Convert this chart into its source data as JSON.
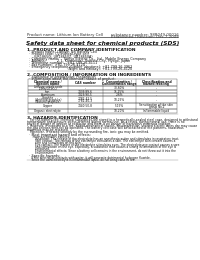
{
  "bg_color": "#ffffff",
  "header_left": "Product name: Lithium Ion Battery Cell",
  "header_right_line1": "substance number: 98R049-00016",
  "header_right_line2": "Established / Revision: Dec.7.2009",
  "title": "Safety data sheet for chemical products (SDS)",
  "section1_title": "1. PRODUCT AND COMPANY IDENTIFICATION",
  "section1_lines": [
    "  · Product name: Lithium Ion Battery Cell",
    "  · Product code: Cylindrical-type cell",
    "      (UR18650J, UR18650Z, UR18650A)",
    "  · Company name:    Sanyo Electric Co., Ltd., Mobile Energy Company",
    "  · Address:          2-1, Kannondai, Sumoto-City, Hyogo, Japan",
    "  · Telephone number:   +81-799-26-4111",
    "  · Fax number:  +81-799-26-4120",
    "  · Emergency telephone number (daytime): +81-799-26-3962",
    "                                    (Night and holiday): +81-799-26-4120"
  ],
  "section2_title": "2. COMPOSITION / INFORMATION ON INGREDIENTS",
  "section2_intro": "  · Substance or preparation: Preparation",
  "section2_sub": "  · Information about the chemical nature of product:",
  "table_headers": [
    "Chemical name /\nSpecies name",
    "CAS number",
    "Concentration /\nConcentration range",
    "Classification and\nhazard labeling"
  ],
  "table_rows": [
    [
      "Lithium cobalt oxide\n(LiMn/LiCoO₂)",
      "-",
      "30-60%",
      "-"
    ],
    [
      "Iron",
      "7439-89-6",
      "15-25%",
      "-"
    ],
    [
      "Aluminum",
      "7429-90-5",
      "2-6%",
      "-"
    ],
    [
      "Graphite\n(Artificial graphite)\n(Natural graphite)",
      "7782-42-5\n7782-40-3",
      "10-25%",
      "-"
    ],
    [
      "Copper",
      "7440-50-8",
      "5-15%",
      "Sensitization of the skin\ngroup No.2"
    ],
    [
      "Organic electrolyte",
      "-",
      "10-20%",
      "Inflammable liquid"
    ]
  ],
  "section3_title": "3. HAZARDS IDENTIFICATION",
  "section3_para": [
    "   For the battery cell, chemical substances are stored in a hermetically sealed steel case, designed to withstand",
    "temperature and pressure-stress-oriented during normal use. As a result, during normal use, there is no",
    "physical danger of ignition or explosion and there is no danger of hazardous materials leakage.",
    "   However, if exposed to a fire, added mechanical shocks, decompression, shorted electric wires dry may cause",
    "the gas release vent not be operated. The battery cell case will be breached of fire patterns, hazardous",
    "materials may be released.",
    "   Moreover, if heated strongly by the surrounding fire, ionic gas may be emitted."
  ],
  "effects_title": "  · Most important hazard and effects:",
  "human_title": "    Human health effects:",
  "human_lines": [
    "        Inhalation: The release of the electrolyte has an anesthesia action and stimulates in respiratory tract.",
    "        Skin contact: The release of the electrolyte stimulates a skin. The electrolyte skin contact causes a",
    "        sore and stimulation on the skin.",
    "        Eye contact: The release of the electrolyte stimulates eyes. The electrolyte eye contact causes a sore",
    "        and stimulation on the eye. Especially, a substance that causes a strong inflammation of the eye is",
    "        contained.",
    "        Environmental effects: Since a battery cell remains in the environment, do not throw out it into the",
    "        environment."
  ],
  "specific_title": "  · Specific hazards:",
  "specific_lines": [
    "    If the electrolyte contacts with water, it will generate detrimental hydrogen fluoride.",
    "    Since the used electrolyte is inflammable liquid, do not bring close to fire."
  ]
}
